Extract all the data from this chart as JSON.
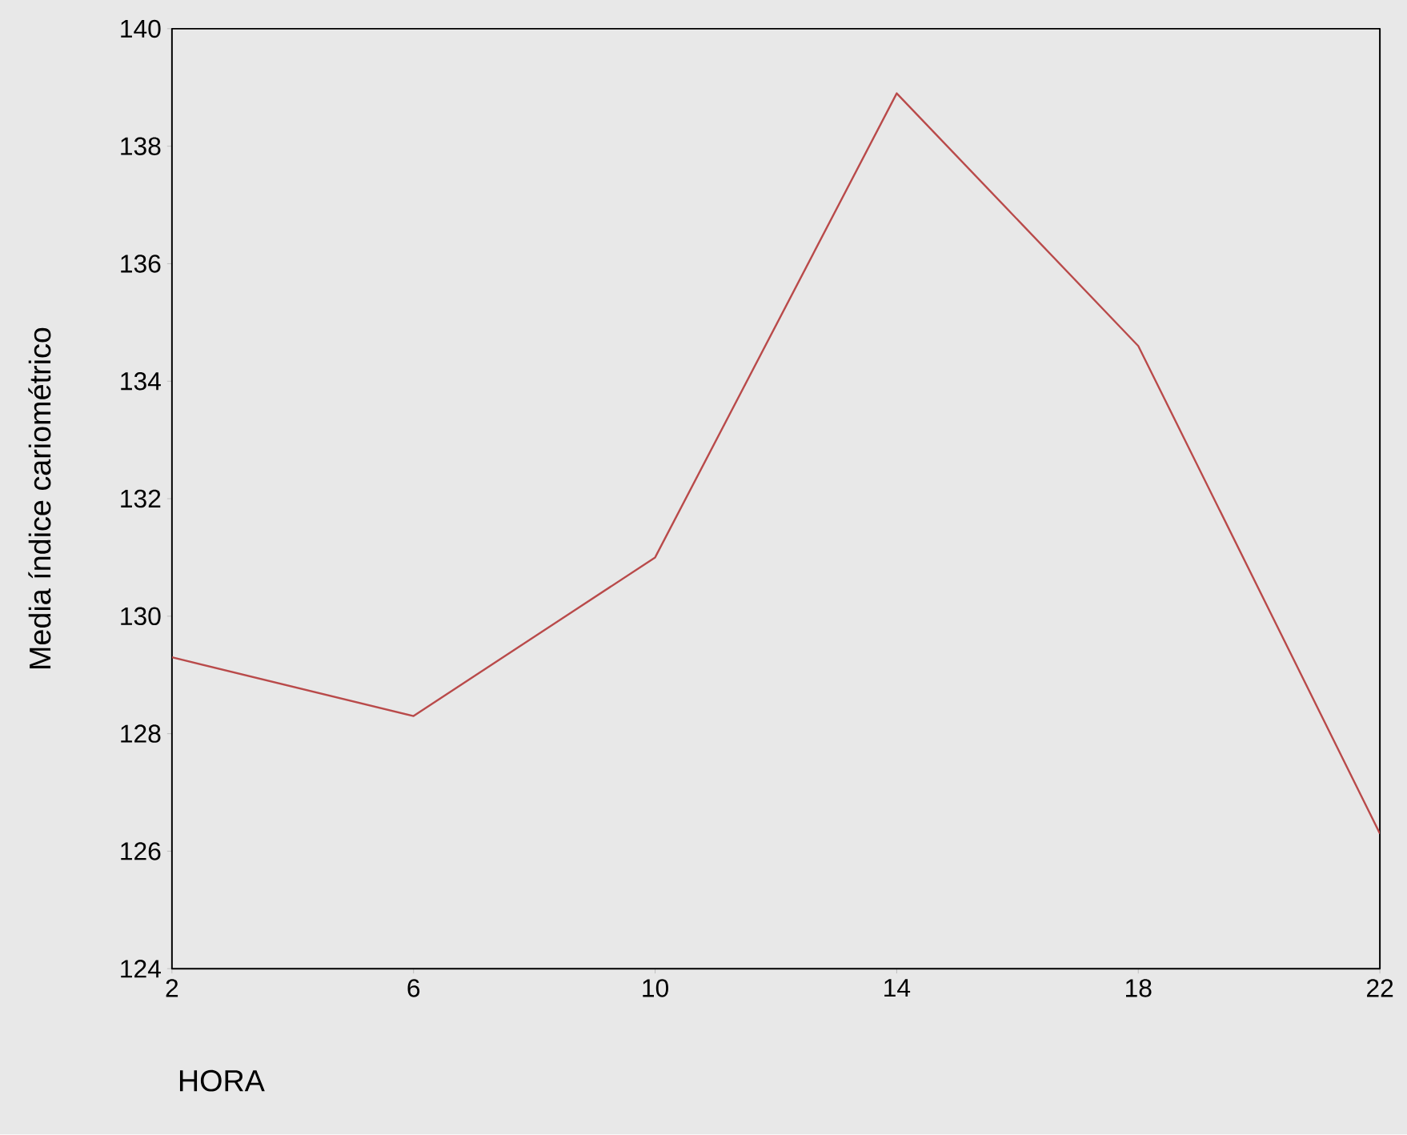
{
  "chart_data": {
    "type": "line",
    "xlabel": "HORA",
    "ylabel": "Media índice cariométrico",
    "x": [
      2,
      6,
      10,
      14,
      18,
      22
    ],
    "series": [
      {
        "color": "#b94a4a",
        "values": [
          129.3,
          128.3,
          131.0,
          138.9,
          134.6,
          126.3
        ]
      }
    ],
    "xlim": [
      2,
      22
    ],
    "ylim": [
      124,
      140
    ],
    "xticks": [
      2,
      6,
      10,
      14,
      18,
      22
    ],
    "yticks": [
      124,
      126,
      128,
      130,
      132,
      134,
      136,
      138,
      140
    ],
    "grid": false,
    "marker": "none",
    "line_style": "solid"
  }
}
